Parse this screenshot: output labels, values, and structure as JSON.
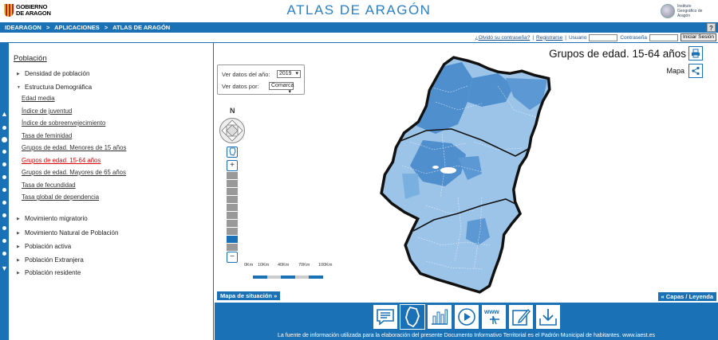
{
  "header": {
    "gov_logo_line1": "GOBIERNO",
    "gov_logo_line2": "DE ARAGON",
    "title": "ATLAS DE ARAGÓN",
    "inst_line1": "Instituto",
    "inst_line2": "Geográfico de",
    "inst_line3": "Aragón"
  },
  "breadcrumb": [
    "IDEARAGON",
    "APLICACIONES",
    "ATLAS DE ARAGÓN"
  ],
  "breadcrumb_sep": ">",
  "help_label": "?",
  "login": {
    "forgot": "¿Olvidó su contraseña?",
    "register": "Registrarse",
    "user_label": "Usuario",
    "password_label": "Contraseña",
    "login_button": "Iniciar Sesión",
    "user_value": "",
    "password_value": ""
  },
  "sidebar": {
    "title": "Población",
    "items_top": [
      {
        "label": "Densidad de población",
        "expanded": false
      },
      {
        "label": "Estructura Demográfica",
        "expanded": true
      }
    ],
    "sub_items": [
      {
        "label": "Edad media",
        "active": false
      },
      {
        "label": "Índice de juventud",
        "active": false
      },
      {
        "label": "Índice de sobreenvejecimiento",
        "active": false
      },
      {
        "label": "Tasa de feminidad",
        "active": false
      },
      {
        "label": "Grupos de edad. Menores de 15 años",
        "active": false
      },
      {
        "label": "Grupos de edad. 15-64 años",
        "active": true
      },
      {
        "label": "Grupos de edad. Mayores de 65 años",
        "active": false
      },
      {
        "label": "Tasa de fecundidad",
        "active": false
      },
      {
        "label": "Tasa global de dependencia",
        "active": false
      }
    ],
    "items_bottom": [
      "Movimiento migratorio",
      "Movimiento Natural de Población",
      "Población activa",
      "Población Extranjera",
      "Población residente"
    ]
  },
  "controls": {
    "year_label": "Ver datos del año:",
    "year_value": "2019",
    "by_label": "Ver datos por:",
    "by_value": "Comarca"
  },
  "map": {
    "title": "Grupos de edad. 15-64 años",
    "subtitle": "Mapa",
    "north": "N",
    "scale_labels": [
      "0Km",
      "10Km",
      "40Km",
      "70Km",
      "100Km"
    ],
    "zoom_level_fraction": 0.1
  },
  "buttons": {
    "situation_map": "Mapa de situación »",
    "layers_legend": "« Capas / Leyenda"
  },
  "toolbar_icons": [
    "text-icon",
    "map-icon",
    "chart-icon",
    "play-icon",
    "www-icon",
    "edit-icon",
    "download-icon"
  ],
  "footer_note": "La fuente de información utilizada para la elaboración del presente Documento Informativo Territorial es el Padrón Municipal de habitantes. www.iaest.es",
  "colors": {
    "accent": "#1b71b5",
    "map_dark": "#4f8fce",
    "map_light": "#9cc4e8",
    "active_link": "#dd0000"
  }
}
